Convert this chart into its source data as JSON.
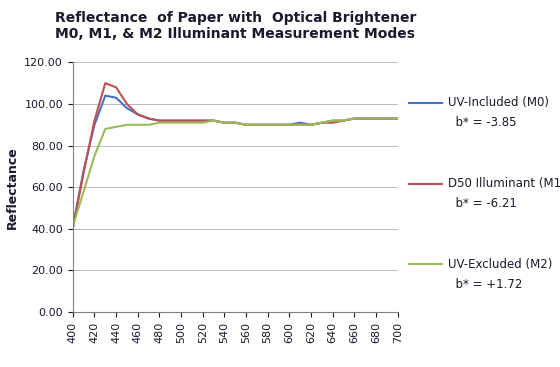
{
  "title": "Reflectance  of Paper with  Optical Brightener\nM0, M1, & M2 Illuminant Measurement Modes",
  "xlabel": "",
  "ylabel": "Reflectance",
  "xlim": [
    400,
    700
  ],
  "ylim": [
    0,
    120
  ],
  "xticks": [
    400,
    420,
    440,
    460,
    480,
    500,
    520,
    540,
    560,
    580,
    600,
    620,
    640,
    660,
    680,
    700
  ],
  "yticks": [
    0,
    20,
    40,
    60,
    80,
    100,
    120
  ],
  "x": [
    400,
    410,
    420,
    430,
    440,
    450,
    460,
    470,
    480,
    490,
    500,
    510,
    520,
    530,
    540,
    550,
    560,
    570,
    580,
    590,
    600,
    610,
    620,
    630,
    640,
    650,
    660,
    670,
    680,
    690,
    700
  ],
  "M0": [
    41,
    68,
    90,
    104,
    103,
    98,
    95,
    93,
    92,
    92,
    92,
    92,
    92,
    92,
    91,
    91,
    90,
    90,
    90,
    90,
    90,
    91,
    90,
    91,
    92,
    92,
    93,
    93,
    93,
    93,
    93
  ],
  "M1": [
    40,
    67,
    92,
    110,
    108,
    100,
    95,
    93,
    92,
    92,
    92,
    92,
    92,
    92,
    91,
    91,
    90,
    90,
    90,
    90,
    90,
    90,
    90,
    91,
    91,
    92,
    93,
    93,
    93,
    93,
    93
  ],
  "M2": [
    41,
    58,
    75,
    88,
    89,
    90,
    90,
    90,
    91,
    91,
    91,
    91,
    91,
    92,
    91,
    91,
    90,
    90,
    90,
    90,
    90,
    90,
    90,
    91,
    92,
    92,
    93,
    93,
    93,
    93,
    93
  ],
  "M0_color": "#4472C4",
  "M1_color": "#C0504D",
  "M2_color": "#9BBB59",
  "M0_label1": "UV-Included (M0)",
  "M0_label2": "  b* = -3.85",
  "M1_label1": "D50 Illuminant (M1)",
  "M1_label2": "  b* = -6.21",
  "M2_label1": "UV-Excluded (M2)",
  "M2_label2": "  b* = +1.72",
  "linewidth": 1.5,
  "title_fontsize": 10,
  "axis_label_fontsize": 9,
  "tick_fontsize": 8,
  "legend_fontsize": 8.5,
  "background_color": "#ffffff",
  "grid_color": "#b0b0b0"
}
